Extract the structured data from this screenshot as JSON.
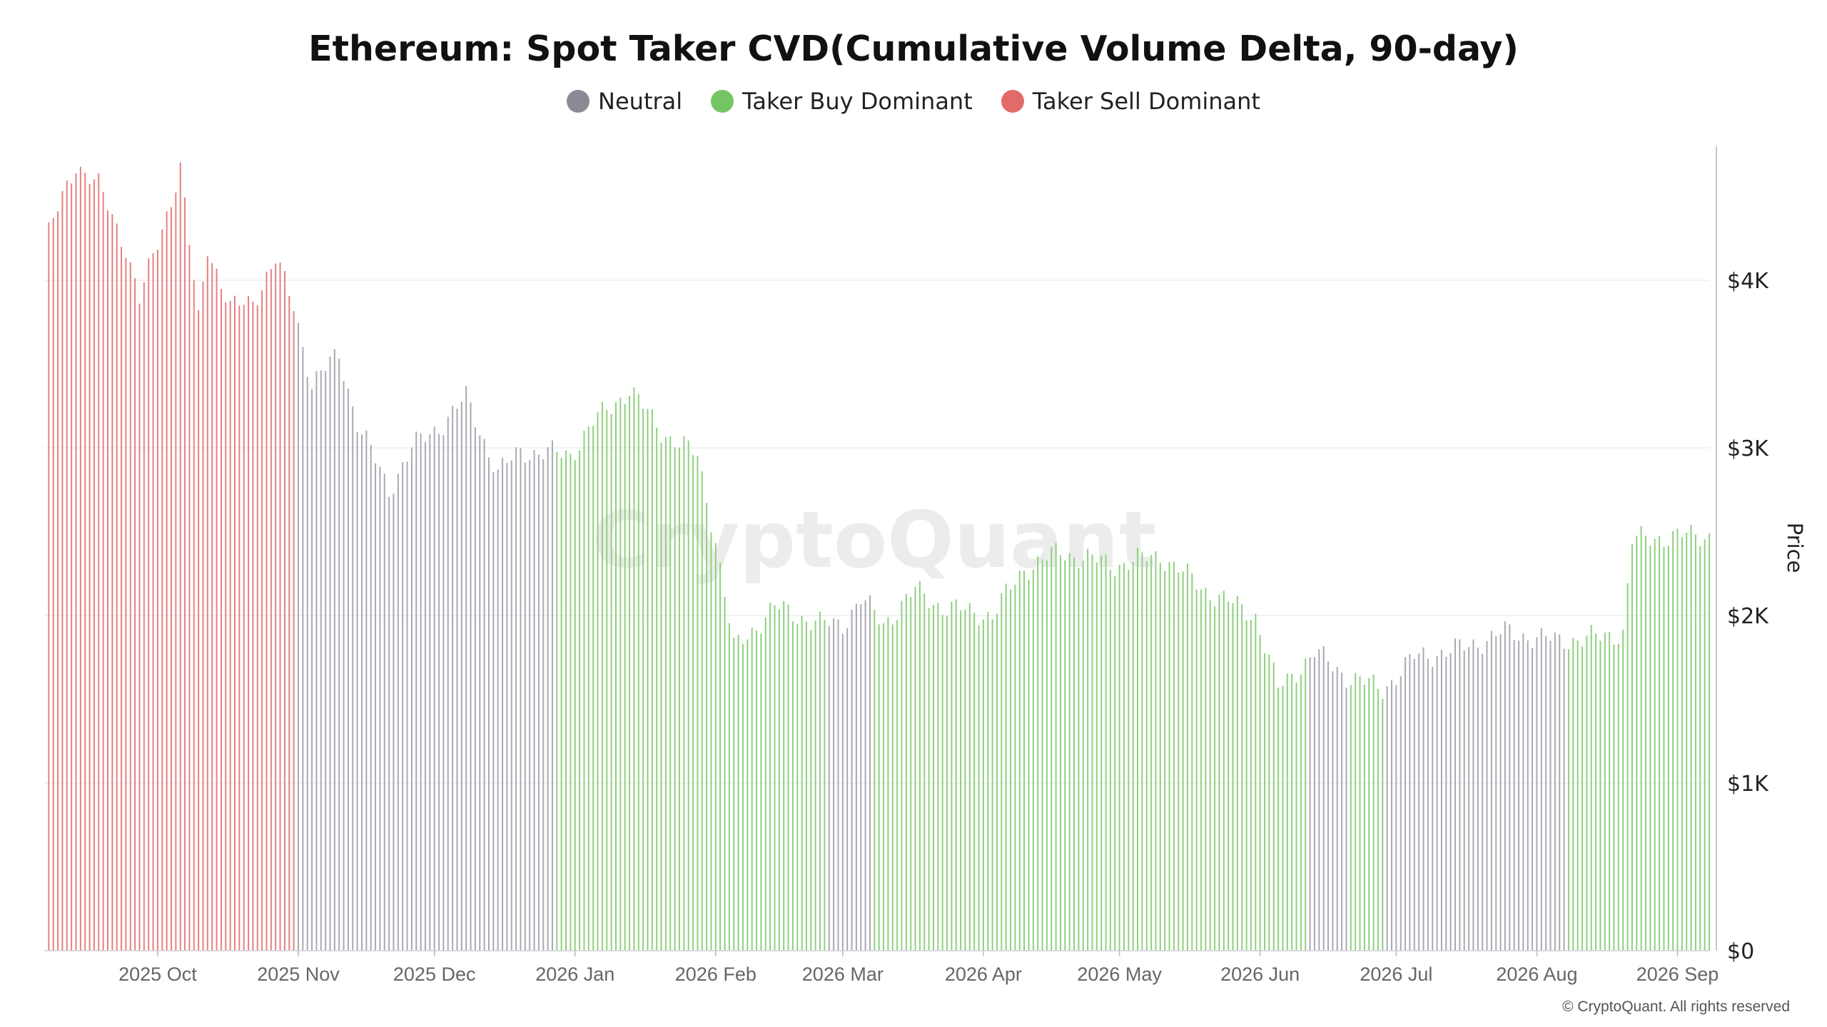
{
  "chart_data": {
    "type": "bar",
    "title": "Ethereum: Spot Taker CVD(Cumulative Volume Delta, 90-day)",
    "legend": [
      {
        "name": "Neutral",
        "color": "#8a8a94"
      },
      {
        "name": "Taker Buy Dominant",
        "color": "#75c565"
      },
      {
        "name": "Taker Sell Dominant",
        "color": "#e36a6a"
      }
    ],
    "legend_placement": "top-center",
    "colors": {
      "neutral": "#a9a9b2",
      "buy": "#8ed07f",
      "sell": "#e58080"
    },
    "ylabel": "Price",
    "y_axis_side": "right",
    "ylim": [
      0,
      4800
    ],
    "y_ticks": [
      0,
      1000,
      2000,
      3000,
      4000
    ],
    "y_tick_labels": [
      "$0",
      "$1K",
      "$2K",
      "$3K",
      "$4K"
    ],
    "x_range": [
      "2025-09-06",
      "2026-09-08"
    ],
    "x_ticks": [
      {
        "date": "2025-10-01",
        "label": "2025 Oct"
      },
      {
        "date": "2025-11-01",
        "label": "2025 Nov"
      },
      {
        "date": "2025-12-01",
        "label": "2025 Dec"
      },
      {
        "date": "2026-01-01",
        "label": "2026 Jan"
      },
      {
        "date": "2026-02-01",
        "label": "2026 Feb"
      },
      {
        "date": "2026-03-01",
        "label": "2026 Mar"
      },
      {
        "date": "2026-04-01",
        "label": "2026 Apr"
      },
      {
        "date": "2026-05-01",
        "label": "2026 May"
      },
      {
        "date": "2026-06-01",
        "label": "2026 Jun"
      },
      {
        "date": "2026-07-01",
        "label": "2026 Jul"
      },
      {
        "date": "2026-08-01",
        "label": "2026 Aug"
      },
      {
        "date": "2026-09-01",
        "label": "2026 Sep"
      }
    ],
    "grid": true,
    "price_anchors": [
      [
        "2025-09-07",
        4280
      ],
      [
        "2025-09-13",
        4700
      ],
      [
        "2025-09-18",
        4560
      ],
      [
        "2025-09-24",
        4200
      ],
      [
        "2025-09-27",
        3880
      ],
      [
        "2025-10-04",
        4490
      ],
      [
        "2025-10-06",
        4670
      ],
      [
        "2025-10-10",
        3760
      ],
      [
        "2025-10-12",
        4210
      ],
      [
        "2025-10-17",
        3830
      ],
      [
        "2025-10-22",
        3880
      ],
      [
        "2025-10-27",
        4120
      ],
      [
        "2025-10-31",
        3850
      ],
      [
        "2025-11-04",
        3380
      ],
      [
        "2025-11-10",
        3560
      ],
      [
        "2025-11-14",
        3150
      ],
      [
        "2025-11-21",
        2750
      ],
      [
        "2025-11-26",
        3000
      ],
      [
        "2025-12-03",
        3150
      ],
      [
        "2025-12-08",
        3300
      ],
      [
        "2025-12-15",
        2850
      ],
      [
        "2025-12-20",
        2980
      ],
      [
        "2025-12-31",
        2960
      ],
      [
        "2026-01-05",
        3150
      ],
      [
        "2026-01-13",
        3350
      ],
      [
        "2026-01-20",
        3100
      ],
      [
        "2026-01-28",
        2950
      ],
      [
        "2026-02-01",
        2450
      ],
      [
        "2026-02-05",
        1800
      ],
      [
        "2026-02-14",
        2050
      ],
      [
        "2026-02-24",
        1950
      ],
      [
        "2026-03-01",
        1950
      ],
      [
        "2026-03-05",
        2100
      ],
      [
        "2026-03-10",
        1950
      ],
      [
        "2026-03-17",
        2150
      ],
      [
        "2026-03-23",
        2050
      ],
      [
        "2026-04-03",
        2000
      ],
      [
        "2026-04-10",
        2280
      ],
      [
        "2026-04-18",
        2380
      ],
      [
        "2026-04-30",
        2300
      ],
      [
        "2026-05-10",
        2360
      ],
      [
        "2026-05-20",
        2150
      ],
      [
        "2026-05-31",
        2000
      ],
      [
        "2026-06-05",
        1560
      ],
      [
        "2026-06-13",
        1780
      ],
      [
        "2026-06-20",
        1640
      ],
      [
        "2026-06-28",
        1560
      ],
      [
        "2026-07-05",
        1750
      ],
      [
        "2026-07-15",
        1800
      ],
      [
        "2026-07-25",
        1900
      ],
      [
        "2026-08-05",
        1850
      ],
      [
        "2026-08-15",
        1870
      ],
      [
        "2026-08-20",
        1900
      ],
      [
        "2026-08-22",
        2450
      ],
      [
        "2026-08-30",
        2470
      ],
      [
        "2026-09-07",
        2480
      ]
    ],
    "regimes": [
      {
        "from": "2025-09-06",
        "to": "2025-10-31",
        "state": "Taker Sell Dominant"
      },
      {
        "from": "2025-11-01",
        "to": "2025-12-27",
        "state": "Neutral"
      },
      {
        "from": "2025-12-28",
        "to": "2026-02-25",
        "state": "Taker Buy Dominant"
      },
      {
        "from": "2026-02-26",
        "to": "2026-03-07",
        "state": "Neutral"
      },
      {
        "from": "2026-03-08",
        "to": "2026-06-11",
        "state": "Taker Buy Dominant"
      },
      {
        "from": "2026-06-12",
        "to": "2026-06-20",
        "state": "Neutral"
      },
      {
        "from": "2026-06-21",
        "to": "2026-06-28",
        "state": "Taker Buy Dominant"
      },
      {
        "from": "2026-06-29",
        "to": "2026-08-07",
        "state": "Neutral"
      },
      {
        "from": "2026-08-08",
        "to": "2026-09-08",
        "state": "Taker Buy Dominant"
      }
    ]
  },
  "watermark": "CryptoQuant",
  "copyright": "© CryptoQuant. All rights reserved"
}
